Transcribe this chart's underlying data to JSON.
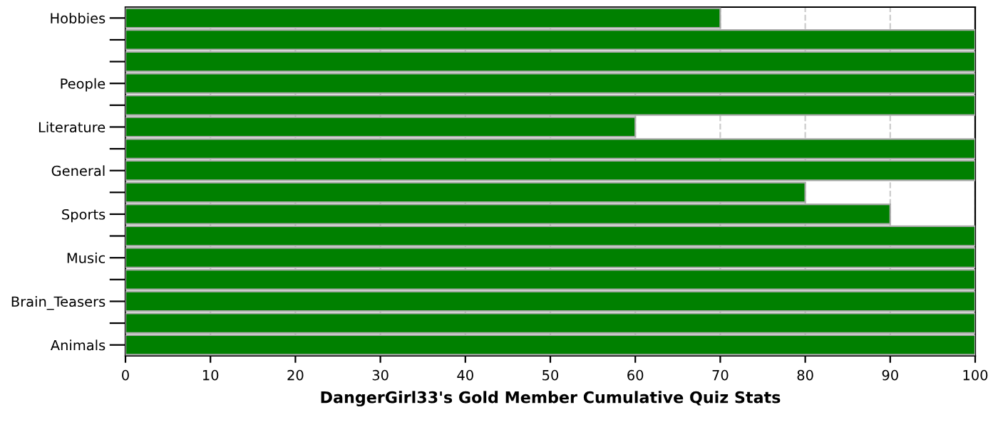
{
  "chart_data": {
    "type": "bar",
    "orientation": "horizontal",
    "xlabel": "DangerGirl33's Gold Member Cumulative Quiz Stats",
    "categories": [
      "Hobbies",
      null,
      null,
      "People",
      null,
      "Literature",
      null,
      "General",
      null,
      "Sports",
      null,
      "Music",
      null,
      "Brain_Teasers",
      null,
      "Animals"
    ],
    "values": [
      70,
      100,
      100,
      100,
      100,
      60,
      100,
      100,
      80,
      90,
      100,
      100,
      100,
      100,
      100,
      100
    ],
    "color": "#008000",
    "xlim": [
      0,
      100
    ],
    "xticks": [
      0,
      10,
      20,
      30,
      40,
      50,
      60,
      70,
      80,
      90,
      100
    ],
    "grid": "x"
  }
}
